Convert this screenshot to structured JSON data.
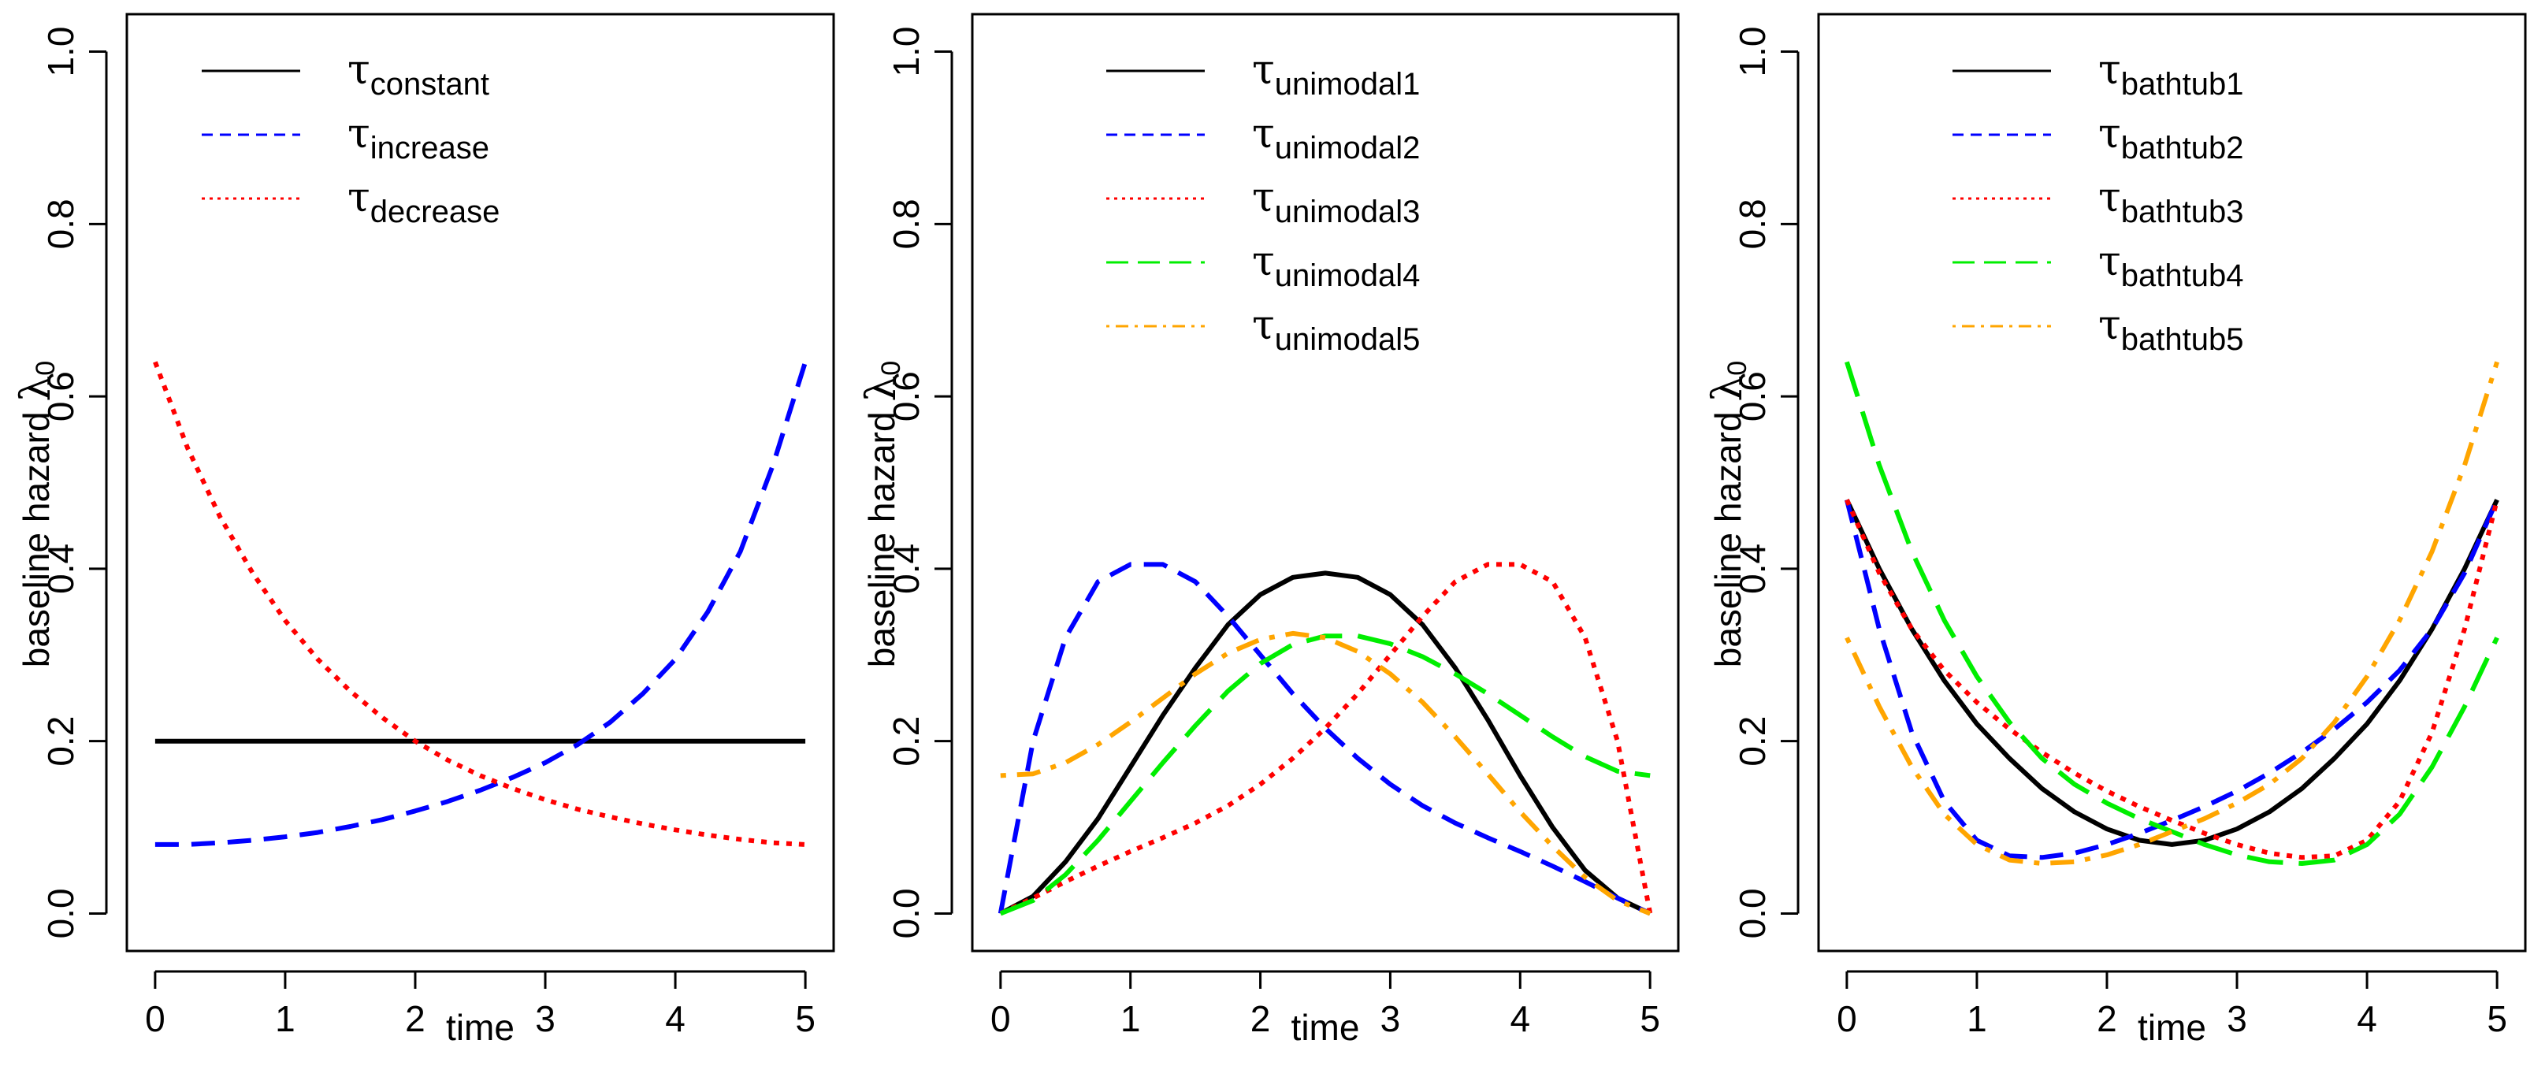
{
  "chart_data": [
    {
      "type": "line",
      "title": "",
      "xlabel": "time",
      "ylabel": "baseline hazard",
      "ylabel_symbol": "λ",
      "ylabel_subscript": "0",
      "xlim": [
        0,
        5
      ],
      "ylim": [
        0,
        1
      ],
      "xticks": [
        "0",
        "1",
        "2",
        "3",
        "4",
        "5"
      ],
      "yticks": [
        "0.0",
        "0.2",
        "0.4",
        "0.6",
        "0.8",
        "1.0"
      ],
      "legend_position": "top",
      "series": [
        {
          "name": "τconstant",
          "symbol": "τ",
          "subscript": "constant",
          "color": "#000000",
          "style": "solid",
          "x": [
            0,
            0.25,
            0.5,
            0.75,
            1,
            1.25,
            1.5,
            1.75,
            2,
            2.25,
            2.5,
            2.75,
            3,
            3.25,
            3.5,
            3.75,
            4,
            4.25,
            4.5,
            4.75,
            5
          ],
          "y": [
            0.2,
            0.2,
            0.2,
            0.2,
            0.2,
            0.2,
            0.2,
            0.2,
            0.2,
            0.2,
            0.2,
            0.2,
            0.2,
            0.2,
            0.2,
            0.2,
            0.2,
            0.2,
            0.2,
            0.2,
            0.2
          ]
        },
        {
          "name": "τincrease",
          "symbol": "τ",
          "subscript": "increase",
          "color": "#0000ff",
          "style": "dashed",
          "x": [
            0,
            0.25,
            0.5,
            0.75,
            1,
            1.25,
            1.5,
            1.75,
            2,
            2.25,
            2.5,
            2.75,
            3,
            3.25,
            3.5,
            3.75,
            4,
            4.25,
            4.5,
            4.75,
            5
          ],
          "y": [
            0.08,
            0.08,
            0.082,
            0.085,
            0.089,
            0.094,
            0.101,
            0.109,
            0.119,
            0.13,
            0.143,
            0.158,
            0.175,
            0.196,
            0.222,
            0.255,
            0.295,
            0.35,
            0.42,
            0.52,
            0.64
          ]
        },
        {
          "name": "τdecrease",
          "symbol": "τ",
          "subscript": "decrease",
          "color": "#ff0000",
          "style": "dotted",
          "x": [
            0,
            0.25,
            0.5,
            0.75,
            1,
            1.25,
            1.5,
            1.75,
            2,
            2.25,
            2.5,
            2.75,
            3,
            3.25,
            3.5,
            3.75,
            4,
            4.25,
            4.5,
            4.75,
            5
          ],
          "y": [
            0.64,
            0.54,
            0.46,
            0.395,
            0.34,
            0.295,
            0.258,
            0.227,
            0.2,
            0.178,
            0.16,
            0.145,
            0.132,
            0.121,
            0.112,
            0.104,
            0.097,
            0.091,
            0.086,
            0.082,
            0.08
          ]
        }
      ]
    },
    {
      "type": "line",
      "title": "",
      "xlabel": "time",
      "ylabel": "baseline hazard",
      "ylabel_symbol": "λ",
      "ylabel_subscript": "0",
      "xlim": [
        0,
        5
      ],
      "ylim": [
        0,
        1
      ],
      "xticks": [
        "0",
        "1",
        "2",
        "3",
        "4",
        "5"
      ],
      "yticks": [
        "0.0",
        "0.2",
        "0.4",
        "0.6",
        "0.8",
        "1.0"
      ],
      "legend_position": "top",
      "series": [
        {
          "name": "τunimodal1",
          "symbol": "τ",
          "subscript": "unimodal1",
          "color": "#000000",
          "style": "solid",
          "x": [
            0,
            0.25,
            0.5,
            0.75,
            1,
            1.25,
            1.5,
            1.75,
            2,
            2.25,
            2.5,
            2.75,
            3,
            3.25,
            3.5,
            3.75,
            4,
            4.25,
            4.5,
            4.75,
            5
          ],
          "y": [
            0.0,
            0.02,
            0.06,
            0.11,
            0.17,
            0.23,
            0.285,
            0.335,
            0.37,
            0.39,
            0.395,
            0.39,
            0.37,
            0.335,
            0.285,
            0.225,
            0.16,
            0.1,
            0.05,
            0.018,
            0.0
          ]
        },
        {
          "name": "τunimodal2",
          "symbol": "τ",
          "subscript": "unimodal2",
          "color": "#0000ff",
          "style": "dashed",
          "x": [
            0,
            0.25,
            0.5,
            0.75,
            1,
            1.25,
            1.5,
            1.75,
            2,
            2.25,
            2.5,
            2.75,
            3,
            3.25,
            3.5,
            3.75,
            4,
            4.25,
            4.5,
            4.75,
            5
          ],
          "y": [
            0.0,
            0.2,
            0.32,
            0.385,
            0.405,
            0.405,
            0.385,
            0.345,
            0.3,
            0.255,
            0.215,
            0.18,
            0.15,
            0.125,
            0.105,
            0.088,
            0.072,
            0.055,
            0.037,
            0.018,
            0.0
          ]
        },
        {
          "name": "τunimodal3",
          "symbol": "τ",
          "subscript": "unimodal3",
          "color": "#ff0000",
          "style": "dotted",
          "x": [
            0,
            0.25,
            0.5,
            0.75,
            1,
            1.25,
            1.5,
            1.75,
            2,
            2.25,
            2.5,
            2.75,
            3,
            3.25,
            3.5,
            3.75,
            4,
            4.25,
            4.5,
            4.75,
            5
          ],
          "y": [
            0.0,
            0.018,
            0.037,
            0.055,
            0.072,
            0.088,
            0.105,
            0.125,
            0.15,
            0.18,
            0.215,
            0.255,
            0.3,
            0.345,
            0.385,
            0.405,
            0.405,
            0.385,
            0.32,
            0.2,
            0.0
          ]
        },
        {
          "name": "τunimodal4",
          "symbol": "τ",
          "subscript": "unimodal4",
          "color": "#00ee00",
          "style": "longdash",
          "x": [
            0,
            0.25,
            0.5,
            0.75,
            1,
            1.25,
            1.5,
            1.75,
            2,
            2.25,
            2.5,
            2.75,
            3,
            3.25,
            3.5,
            3.75,
            4,
            4.25,
            4.5,
            4.75,
            5
          ],
          "y": [
            0.0,
            0.015,
            0.045,
            0.085,
            0.13,
            0.175,
            0.218,
            0.258,
            0.29,
            0.312,
            0.322,
            0.322,
            0.313,
            0.298,
            0.278,
            0.255,
            0.23,
            0.205,
            0.182,
            0.165,
            0.16
          ]
        },
        {
          "name": "τunimodal5",
          "symbol": "τ",
          "subscript": "unimodal5",
          "color": "#ffa500",
          "style": "dotdash",
          "x": [
            0,
            0.25,
            0.5,
            0.75,
            1,
            1.25,
            1.5,
            1.75,
            2,
            2.25,
            2.5,
            2.75,
            3,
            3.25,
            3.5,
            3.75,
            4,
            4.25,
            4.5,
            4.75,
            5
          ],
          "y": [
            0.16,
            0.162,
            0.175,
            0.196,
            0.222,
            0.25,
            0.278,
            0.302,
            0.318,
            0.325,
            0.32,
            0.304,
            0.278,
            0.245,
            0.205,
            0.162,
            0.118,
            0.078,
            0.042,
            0.015,
            0.0
          ]
        }
      ]
    },
    {
      "type": "line",
      "title": "",
      "xlabel": "time",
      "ylabel": "baseline hazard",
      "ylabel_symbol": "λ",
      "ylabel_subscript": "0",
      "xlim": [
        0,
        5
      ],
      "ylim": [
        0,
        1
      ],
      "xticks": [
        "0",
        "1",
        "2",
        "3",
        "4",
        "5"
      ],
      "yticks": [
        "0.0",
        "0.2",
        "0.4",
        "0.6",
        "0.8",
        "1.0"
      ],
      "legend_position": "top",
      "series": [
        {
          "name": "τbathtub1",
          "symbol": "τ",
          "subscript": "bathtub1",
          "color": "#000000",
          "style": "solid",
          "x": [
            0,
            0.25,
            0.5,
            0.75,
            1,
            1.25,
            1.5,
            1.75,
            2,
            2.25,
            2.5,
            2.75,
            3,
            3.25,
            3.5,
            3.75,
            4,
            4.25,
            4.5,
            4.75,
            5
          ],
          "y": [
            0.48,
            0.4,
            0.33,
            0.27,
            0.22,
            0.18,
            0.145,
            0.118,
            0.098,
            0.085,
            0.08,
            0.085,
            0.098,
            0.118,
            0.145,
            0.18,
            0.22,
            0.27,
            0.33,
            0.4,
            0.48
          ]
        },
        {
          "name": "τbathtub2",
          "symbol": "τ",
          "subscript": "bathtub2",
          "color": "#0000ff",
          "style": "dashed",
          "x": [
            0,
            0.25,
            0.5,
            0.75,
            1,
            1.25,
            1.5,
            1.75,
            2,
            2.25,
            2.5,
            2.75,
            3,
            3.25,
            3.5,
            3.75,
            4,
            4.25,
            4.5,
            4.75,
            5
          ],
          "y": [
            0.48,
            0.33,
            0.21,
            0.13,
            0.085,
            0.067,
            0.065,
            0.07,
            0.08,
            0.093,
            0.108,
            0.124,
            0.142,
            0.163,
            0.187,
            0.214,
            0.245,
            0.282,
            0.33,
            0.395,
            0.48
          ]
        },
        {
          "name": "τbathtub3",
          "symbol": "τ",
          "subscript": "bathtub3",
          "color": "#ff0000",
          "style": "dotted",
          "x": [
            0,
            0.25,
            0.5,
            0.75,
            1,
            1.25,
            1.5,
            1.75,
            2,
            2.25,
            2.5,
            2.75,
            3,
            3.25,
            3.5,
            3.75,
            4,
            4.25,
            4.5,
            4.75,
            5
          ],
          "y": [
            0.48,
            0.395,
            0.33,
            0.282,
            0.245,
            0.214,
            0.187,
            0.163,
            0.142,
            0.124,
            0.108,
            0.093,
            0.08,
            0.07,
            0.065,
            0.067,
            0.085,
            0.13,
            0.21,
            0.33,
            0.48
          ]
        },
        {
          "name": "τbathtub4",
          "symbol": "τ",
          "subscript": "bathtub4",
          "color": "#00ee00",
          "style": "longdash",
          "x": [
            0,
            0.25,
            0.5,
            0.75,
            1,
            1.25,
            1.5,
            1.75,
            2,
            2.25,
            2.5,
            2.75,
            3,
            3.25,
            3.5,
            3.75,
            4,
            4.25,
            4.5,
            4.75,
            5
          ],
          "y": [
            0.64,
            0.52,
            0.42,
            0.34,
            0.275,
            0.222,
            0.18,
            0.15,
            0.128,
            0.11,
            0.095,
            0.08,
            0.068,
            0.06,
            0.058,
            0.062,
            0.08,
            0.115,
            0.17,
            0.24,
            0.32
          ]
        },
        {
          "name": "τbathtub5",
          "symbol": "τ",
          "subscript": "bathtub5",
          "color": "#ffa500",
          "style": "dotdash",
          "x": [
            0,
            0.25,
            0.5,
            0.75,
            1,
            1.25,
            1.5,
            1.75,
            2,
            2.25,
            2.5,
            2.75,
            3,
            3.25,
            3.5,
            3.75,
            4,
            4.25,
            4.5,
            4.75,
            5
          ],
          "y": [
            0.32,
            0.24,
            0.17,
            0.115,
            0.08,
            0.062,
            0.058,
            0.06,
            0.068,
            0.08,
            0.095,
            0.11,
            0.128,
            0.15,
            0.18,
            0.222,
            0.275,
            0.34,
            0.42,
            0.52,
            0.64
          ]
        }
      ]
    }
  ]
}
